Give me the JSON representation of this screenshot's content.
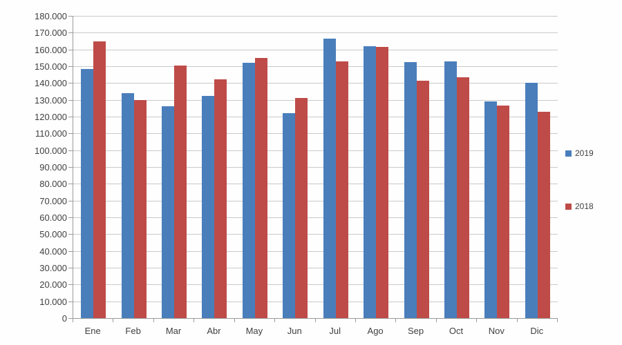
{
  "colors": {
    "series_2019": "#4a7ebb",
    "series_2018": "#be4b48",
    "gridline": "#c9c9c9",
    "axis": "#9a9a9a",
    "text": "#3f3f3f",
    "background": "#fefefe"
  },
  "y_axis": {
    "tick_labels": [
      "0",
      "10.000",
      "20.000",
      "30.000",
      "40.000",
      "50.000",
      "60.000",
      "70.000",
      "80.000",
      "90.000",
      "100.000",
      "110.000",
      "120.000",
      "130.000",
      "140.000",
      "150.000",
      "160.000",
      "170.000",
      "180.000"
    ]
  },
  "legend": {
    "items": [
      {
        "label": "2019",
        "color": "#4a7ebb"
      },
      {
        "label": "2018",
        "color": "#be4b48"
      }
    ]
  },
  "chart_data": {
    "type": "bar",
    "title": "",
    "xlabel": "",
    "ylabel": "",
    "categories": [
      "Ene",
      "Feb",
      "Mar",
      "Abr",
      "May",
      "Jun",
      "Jul",
      "Ago",
      "Sep",
      "Oct",
      "Nov",
      "Dic"
    ],
    "series": [
      {
        "name": "2019",
        "color": "#4a7ebb",
        "values": [
          148500,
          134000,
          126000,
          132500,
          152000,
          122000,
          166500,
          162000,
          152500,
          153000,
          129000,
          140000
        ]
      },
      {
        "name": "2018",
        "color": "#be4b48",
        "values": [
          165000,
          130000,
          150500,
          142000,
          155000,
          131000,
          153000,
          161500,
          141500,
          143500,
          126500,
          123000
        ]
      }
    ],
    "ylim": [
      0,
      180000
    ],
    "ytick_step": 10000,
    "grid": true,
    "legend_position": "right"
  }
}
